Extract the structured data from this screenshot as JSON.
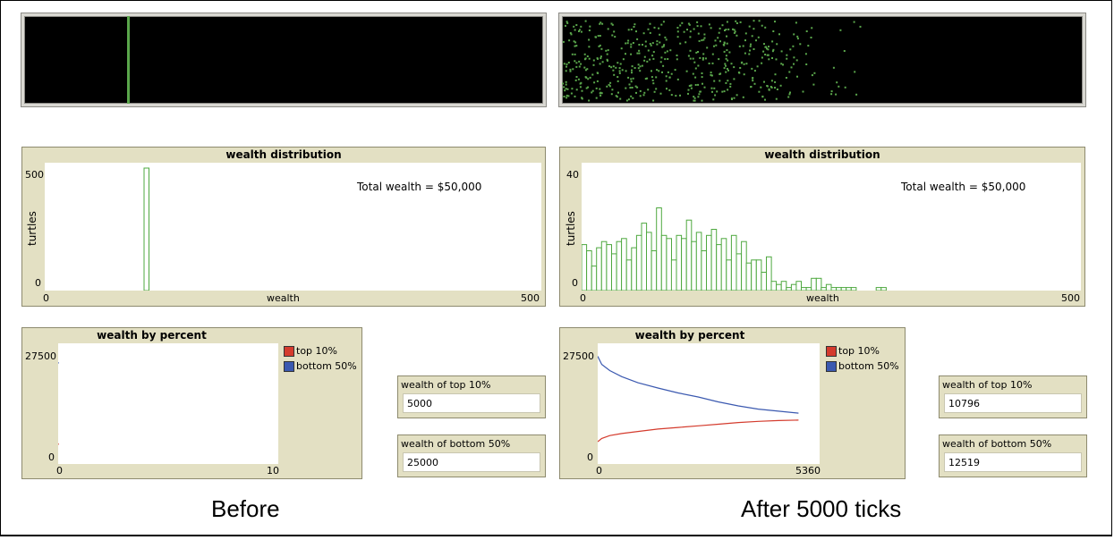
{
  "before": {
    "caption": "Before",
    "histogram": {
      "title": "wealth distribution",
      "ylabel": "turtles",
      "xlabel": "wealth",
      "y_max_label": "500",
      "y_min_label": "0",
      "x_min_label": "0",
      "x_max_label": "500",
      "annotation": "Total wealth = $50,000"
    },
    "percent_plot": {
      "title": "wealth by percent",
      "y_max_label": "27500",
      "y_min_label": "0",
      "x_min_label": "0",
      "x_max_label": "10",
      "legend": [
        {
          "label": "top 10%",
          "color": "#d43b2d"
        },
        {
          "label": "bottom 50%",
          "color": "#3b59b0"
        }
      ]
    },
    "monitors": [
      {
        "label": "wealth of top 10%",
        "value": "5000"
      },
      {
        "label": "wealth of bottom 50%",
        "value": "25000"
      }
    ]
  },
  "after": {
    "caption": "After 5000 ticks",
    "histogram": {
      "title": "wealth distribution",
      "ylabel": "turtles",
      "xlabel": "wealth",
      "y_max_label": "40",
      "y_min_label": "0",
      "x_min_label": "0",
      "x_max_label": "500",
      "annotation": "Total wealth = $50,000"
    },
    "percent_plot": {
      "title": "wealth by percent",
      "y_max_label": "27500",
      "y_min_label": "0",
      "x_min_label": "0",
      "x_max_label": "5360",
      "legend": [
        {
          "label": "top 10%",
          "color": "#d43b2d"
        },
        {
          "label": "bottom 50%",
          "color": "#3b59b0"
        }
      ]
    },
    "monitors": [
      {
        "label": "wealth of top 10%",
        "value": "10796"
      },
      {
        "label": "wealth of bottom 50%",
        "value": "12519"
      }
    ]
  },
  "colors": {
    "turtle": "#5aa64b",
    "histogram_bar": "#4ea83f",
    "world_bg": "#000000"
  },
  "chart_data": [
    {
      "type": "bar",
      "title": "wealth distribution",
      "xlabel": "wealth",
      "ylabel": "turtles",
      "xlim": [
        0,
        500
      ],
      "ylim": [
        0,
        500
      ],
      "x": [
        100
      ],
      "values": [
        500
      ]
    },
    {
      "type": "bar",
      "title": "wealth distribution",
      "xlabel": "wealth",
      "ylabel": "turtles",
      "xlim": [
        0,
        500
      ],
      "ylim": [
        0,
        40
      ],
      "bin_width": 5,
      "x": [
        0,
        5,
        10,
        15,
        20,
        25,
        30,
        35,
        40,
        45,
        50,
        55,
        60,
        65,
        70,
        75,
        80,
        85,
        90,
        95,
        100,
        105,
        110,
        115,
        120,
        125,
        130,
        135,
        140,
        145,
        150,
        155,
        160,
        165,
        170,
        175,
        180,
        185,
        190,
        195,
        200,
        205,
        210,
        215,
        220,
        225,
        230,
        235,
        240,
        245,
        250,
        255,
        260,
        265,
        270,
        275,
        280,
        285,
        290,
        295,
        300
      ],
      "values": [
        15,
        13,
        8,
        14,
        16,
        15,
        12,
        16,
        17,
        10,
        14,
        18,
        22,
        19,
        13,
        27,
        18,
        17,
        10,
        18,
        17,
        23,
        16,
        19,
        13,
        18,
        20,
        15,
        17,
        10,
        18,
        12,
        16,
        9,
        10,
        10,
        6,
        11,
        3,
        2,
        3,
        1,
        2,
        3,
        1,
        1,
        4,
        4,
        1,
        2,
        1,
        1,
        1,
        1,
        1,
        0,
        0,
        0,
        0,
        1,
        1
      ]
    },
    {
      "type": "line",
      "title": "wealth by percent",
      "xlim": [
        0,
        10
      ],
      "ylim": [
        0,
        27500
      ],
      "series": [
        {
          "name": "top 10%",
          "x": [
            0
          ],
          "values": [
            5000
          ]
        },
        {
          "name": "bottom 50%",
          "x": [
            0
          ],
          "values": [
            25000
          ]
        }
      ]
    },
    {
      "type": "line",
      "title": "wealth by percent",
      "xlim": [
        0,
        5360
      ],
      "ylim": [
        0,
        27500
      ],
      "series": [
        {
          "name": "top 10%",
          "x": [
            0,
            100,
            300,
            600,
            1000,
            1500,
            2000,
            2500,
            3000,
            3500,
            4000,
            4500,
            5000
          ],
          "values": [
            5500,
            6300,
            7000,
            7500,
            8000,
            8600,
            9000,
            9400,
            9800,
            10200,
            10500,
            10700,
            10796
          ]
        },
        {
          "name": "bottom 50%",
          "x": [
            0,
            100,
            300,
            600,
            1000,
            1500,
            2000,
            2500,
            3000,
            3500,
            4000,
            4500,
            5000
          ],
          "values": [
            26500,
            24500,
            23000,
            21500,
            20000,
            18700,
            17500,
            16500,
            15300,
            14300,
            13500,
            13000,
            12519
          ]
        }
      ]
    }
  ]
}
